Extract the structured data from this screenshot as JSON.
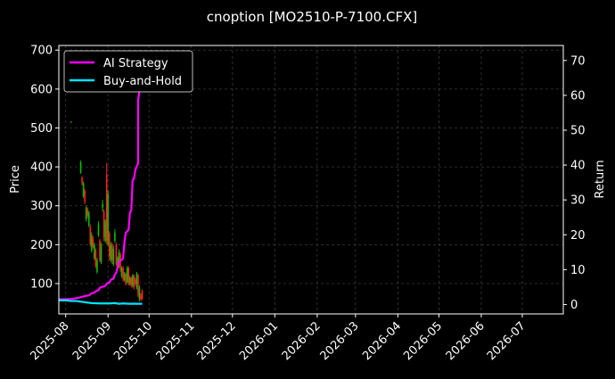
{
  "chart_data": {
    "type": "line",
    "title": "cnoption [MO2510-P-7100.CFX]",
    "ylabel_left": "Price",
    "ylabel_right": "Return",
    "ylim_left": [
      22,
      712
    ],
    "ylim_right": [
      -2.7,
      74.3
    ],
    "xlim": [
      "2025-07-27",
      "2026-07-31"
    ],
    "x_ticks": [
      "2025-08",
      "2025-09",
      "2025-10",
      "2025-11",
      "2025-12",
      "2026-01",
      "2026-02",
      "2026-03",
      "2026-04",
      "2026-05",
      "2026-06",
      "2026-07"
    ],
    "y_ticks_left": [
      100,
      200,
      300,
      400,
      500,
      600,
      700
    ],
    "y_ticks_right": [
      0,
      10,
      20,
      30,
      40,
      50,
      60,
      70
    ],
    "grid": true,
    "legend_position": "top-left",
    "colors": {
      "background": "#000000",
      "grid": "#3a3a3a",
      "up": "#00c000",
      "down": "#ff2020",
      "ai": "#ff00ff",
      "bh": "#00e5ff"
    },
    "series": [
      {
        "name": "AI Strategy",
        "color": "#ff00ff",
        "axis": "right",
        "points": [
          [
            "2025-07-27",
            1.5
          ],
          [
            "2025-08-01",
            1.5
          ],
          [
            "2025-08-06",
            1.6
          ],
          [
            "2025-08-10",
            1.9
          ],
          [
            "2025-08-14",
            2.3
          ],
          [
            "2025-08-16",
            2.5
          ],
          [
            "2025-08-18",
            2.6
          ],
          [
            "2025-08-20",
            3.2
          ],
          [
            "2025-08-22",
            3.4
          ],
          [
            "2025-08-23",
            3.8
          ],
          [
            "2025-08-25",
            4.1
          ],
          [
            "2025-08-26",
            4.8
          ],
          [
            "2025-08-28",
            5.1
          ],
          [
            "2025-08-30",
            5.3
          ],
          [
            "2025-08-31",
            6.0
          ],
          [
            "2025-09-02",
            6.3
          ],
          [
            "2025-09-03",
            7.1
          ],
          [
            "2025-09-05",
            7.4
          ],
          [
            "2025-09-06",
            8.6
          ],
          [
            "2025-09-07",
            9.1
          ],
          [
            "2025-09-09",
            12.3
          ],
          [
            "2025-09-10",
            12.6
          ],
          [
            "2025-09-11",
            12.8
          ],
          [
            "2025-09-12",
            13.2
          ],
          [
            "2025-09-13",
            17.9
          ],
          [
            "2025-09-14",
            20.6
          ],
          [
            "2025-09-16",
            21.4
          ],
          [
            "2025-09-17",
            26.3
          ],
          [
            "2025-09-18",
            27.1
          ],
          [
            "2025-09-19",
            35.7
          ],
          [
            "2025-09-20",
            36.1
          ],
          [
            "2025-09-21",
            38.7
          ],
          [
            "2025-09-23",
            40.5
          ],
          [
            "2025-09-23",
            58.7
          ],
          [
            "2025-09-24",
            61.5
          ],
          [
            "2025-09-25",
            62.9
          ],
          [
            "2025-09-26",
            65.8
          ]
        ]
      },
      {
        "name": "Buy-and-Hold",
        "color": "#00e5ff",
        "axis": "right",
        "points": [
          [
            "2025-07-27",
            1.2
          ],
          [
            "2025-08-01",
            1.2
          ],
          [
            "2025-08-05",
            1.0
          ],
          [
            "2025-08-09",
            1.0
          ],
          [
            "2025-08-14",
            0.7
          ],
          [
            "2025-08-20",
            0.4
          ],
          [
            "2025-08-26",
            0.3
          ],
          [
            "2025-09-02",
            0.3
          ],
          [
            "2025-09-06",
            0.4
          ],
          [
            "2025-09-09",
            0.2
          ],
          [
            "2025-09-12",
            0.3
          ],
          [
            "2025-09-16",
            0.2
          ],
          [
            "2025-09-20",
            0.2
          ],
          [
            "2025-09-26",
            0.2
          ]
        ]
      }
    ],
    "price_candles": [
      {
        "date": "2025-08-05",
        "open": 514,
        "close": 516,
        "high": 517,
        "low": 513,
        "dir": "up"
      },
      {
        "date": "2025-08-12",
        "open": 385,
        "close": 412,
        "high": 416,
        "low": 382,
        "dir": "up"
      },
      {
        "date": "2025-08-13",
        "open": 372,
        "close": 358,
        "high": 376,
        "low": 352,
        "dir": "down"
      },
      {
        "date": "2025-08-14",
        "open": 325,
        "close": 358,
        "high": 362,
        "low": 320,
        "dir": "up"
      },
      {
        "date": "2025-08-15",
        "open": 338,
        "close": 310,
        "high": 343,
        "low": 303,
        "dir": "down"
      },
      {
        "date": "2025-08-16",
        "open": 265,
        "close": 295,
        "high": 300,
        "low": 260,
        "dir": "up"
      },
      {
        "date": "2025-08-17",
        "open": 290,
        "close": 275,
        "high": 296,
        "low": 268,
        "dir": "down"
      },
      {
        "date": "2025-08-18",
        "open": 250,
        "close": 282,
        "high": 287,
        "low": 245,
        "dir": "up"
      },
      {
        "date": "2025-08-19",
        "open": 245,
        "close": 200,
        "high": 252,
        "low": 195,
        "dir": "down"
      },
      {
        "date": "2025-08-20",
        "open": 185,
        "close": 225,
        "high": 232,
        "low": 180,
        "dir": "up"
      },
      {
        "date": "2025-08-21",
        "open": 215,
        "close": 195,
        "high": 222,
        "low": 190,
        "dir": "down"
      },
      {
        "date": "2025-08-22",
        "open": 165,
        "close": 200,
        "high": 205,
        "low": 160,
        "dir": "up"
      },
      {
        "date": "2025-08-23",
        "open": 185,
        "close": 145,
        "high": 190,
        "low": 140,
        "dir": "down"
      },
      {
        "date": "2025-08-24",
        "open": 130,
        "close": 160,
        "high": 166,
        "low": 125,
        "dir": "up"
      },
      {
        "date": "2025-08-25",
        "open": 225,
        "close": 252,
        "high": 260,
        "low": 220,
        "dir": "up"
      },
      {
        "date": "2025-08-26",
        "open": 210,
        "close": 160,
        "high": 215,
        "low": 155,
        "dir": "down"
      },
      {
        "date": "2025-08-27",
        "open": 155,
        "close": 200,
        "high": 205,
        "low": 150,
        "dir": "up"
      },
      {
        "date": "2025-08-28",
        "open": 295,
        "close": 305,
        "high": 315,
        "low": 285,
        "dir": "up"
      },
      {
        "date": "2025-08-29",
        "open": 285,
        "close": 220,
        "high": 290,
        "low": 210,
        "dir": "down"
      },
      {
        "date": "2025-08-30",
        "open": 210,
        "close": 260,
        "high": 265,
        "low": 205,
        "dir": "up"
      },
      {
        "date": "2025-08-31",
        "open": 380,
        "close": 210,
        "high": 410,
        "low": 200,
        "dir": "down"
      },
      {
        "date": "2025-09-01",
        "open": 200,
        "close": 330,
        "high": 340,
        "low": 195,
        "dir": "up"
      },
      {
        "date": "2025-09-02",
        "open": 230,
        "close": 170,
        "high": 235,
        "low": 160,
        "dir": "down"
      },
      {
        "date": "2025-09-03",
        "open": 160,
        "close": 200,
        "high": 207,
        "low": 155,
        "dir": "up"
      },
      {
        "date": "2025-09-04",
        "open": 200,
        "close": 160,
        "high": 205,
        "low": 150,
        "dir": "down"
      },
      {
        "date": "2025-09-05",
        "open": 150,
        "close": 190,
        "high": 197,
        "low": 145,
        "dir": "up"
      },
      {
        "date": "2025-09-06",
        "open": 210,
        "close": 230,
        "high": 240,
        "low": 205,
        "dir": "up"
      },
      {
        "date": "2025-09-07",
        "open": 200,
        "close": 150,
        "high": 205,
        "low": 145,
        "dir": "down"
      },
      {
        "date": "2025-09-08",
        "open": 145,
        "close": 165,
        "high": 170,
        "low": 140,
        "dir": "up"
      },
      {
        "date": "2025-09-09",
        "open": 145,
        "close": 180,
        "high": 188,
        "low": 140,
        "dir": "up"
      },
      {
        "date": "2025-09-10",
        "open": 175,
        "close": 135,
        "high": 180,
        "low": 130,
        "dir": "down"
      },
      {
        "date": "2025-09-11",
        "open": 120,
        "close": 140,
        "high": 145,
        "low": 115,
        "dir": "up"
      },
      {
        "date": "2025-09-12",
        "open": 140,
        "close": 110,
        "high": 145,
        "low": 105,
        "dir": "down"
      },
      {
        "date": "2025-09-13",
        "open": 110,
        "close": 125,
        "high": 130,
        "low": 105,
        "dir": "up"
      },
      {
        "date": "2025-09-14",
        "open": 125,
        "close": 100,
        "high": 128,
        "low": 95,
        "dir": "down"
      },
      {
        "date": "2025-09-15",
        "open": 105,
        "close": 140,
        "high": 145,
        "low": 100,
        "dir": "up"
      },
      {
        "date": "2025-09-16",
        "open": 140,
        "close": 100,
        "high": 145,
        "low": 95,
        "dir": "down"
      },
      {
        "date": "2025-09-17",
        "open": 100,
        "close": 115,
        "high": 120,
        "low": 95,
        "dir": "up"
      },
      {
        "date": "2025-09-18",
        "open": 115,
        "close": 95,
        "high": 118,
        "low": 90,
        "dir": "down"
      },
      {
        "date": "2025-09-19",
        "open": 95,
        "close": 120,
        "high": 125,
        "low": 90,
        "dir": "up"
      },
      {
        "date": "2025-09-20",
        "open": 120,
        "close": 90,
        "high": 123,
        "low": 85,
        "dir": "down"
      },
      {
        "date": "2025-09-21",
        "open": 110,
        "close": 100,
        "high": 115,
        "low": 95,
        "dir": "down"
      },
      {
        "date": "2025-09-22",
        "open": 90,
        "close": 125,
        "high": 130,
        "low": 85,
        "dir": "up"
      },
      {
        "date": "2025-09-23",
        "open": 120,
        "close": 70,
        "high": 125,
        "low": 65,
        "dir": "down"
      },
      {
        "date": "2025-09-24",
        "open": 60,
        "close": 90,
        "high": 95,
        "low": 55,
        "dir": "up"
      },
      {
        "date": "2025-09-25",
        "open": 70,
        "close": 60,
        "high": 75,
        "low": 55,
        "dir": "down"
      },
      {
        "date": "2025-09-26",
        "open": 80,
        "close": 62,
        "high": 85,
        "low": 58,
        "dir": "down"
      }
    ]
  }
}
